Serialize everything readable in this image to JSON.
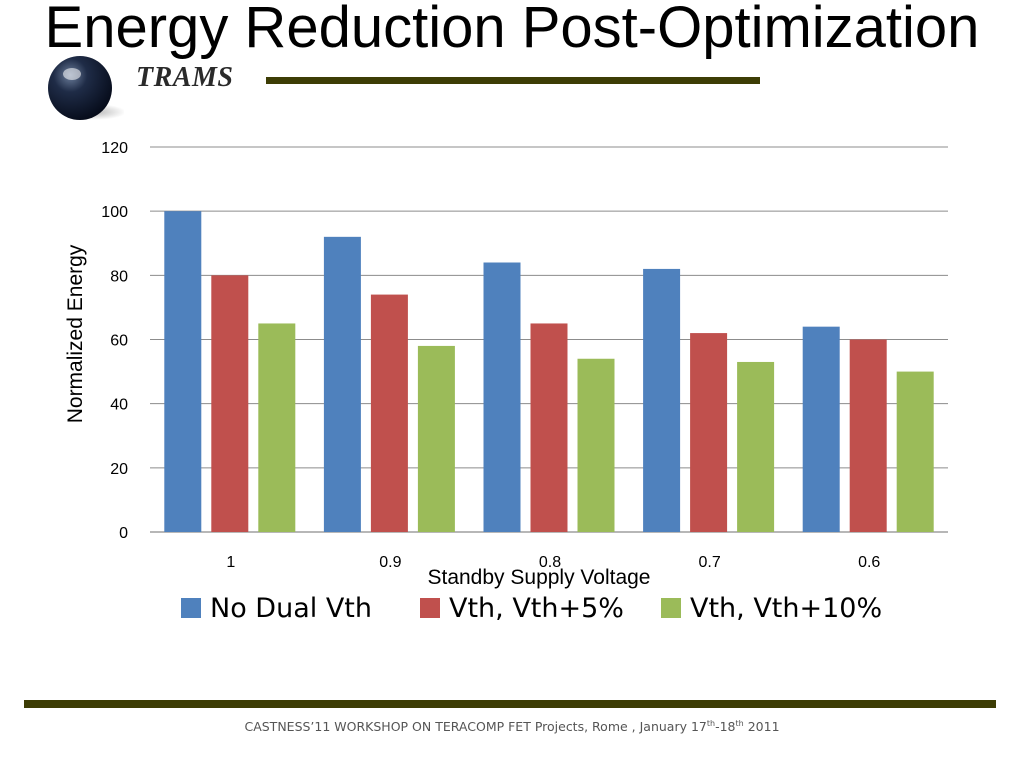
{
  "slide": {
    "title": "Energy Reduction Post-Optimization",
    "logo_text": "TRAMS",
    "footer_pre": "CASTNESS’11 WORKSHOP ON TERACOMP  FET Projects, Rome , January 17",
    "footer_sup1": "th",
    "footer_mid": "-18",
    "footer_sup2": "th",
    "footer_post": " 2011"
  },
  "colors": {
    "series": [
      "#4f81bd",
      "#c0504d",
      "#9bbb59"
    ],
    "rule": "#3d3d05",
    "grid": "#8c8c8c"
  },
  "chart_data": {
    "type": "bar",
    "title": "",
    "xlabel": "Standby Supply Voltage",
    "ylabel": "Normalized Energy",
    "categories": [
      "1",
      "0.9",
      "0.8",
      "0.7",
      "0.6"
    ],
    "series": [
      {
        "name": "No Dual Vth",
        "values": [
          100,
          92,
          84,
          82,
          64
        ]
      },
      {
        "name": "Vth, Vth+5%",
        "values": [
          80,
          74,
          65,
          62,
          60
        ]
      },
      {
        "name": "Vth, Vth+10%",
        "values": [
          65,
          58,
          54,
          53,
          50
        ]
      }
    ],
    "ylim": [
      0,
      120
    ],
    "yticks": [
      "0",
      "20",
      "40",
      "60",
      "80",
      "100",
      "120"
    ],
    "grid": true,
    "legend": "bottom"
  }
}
